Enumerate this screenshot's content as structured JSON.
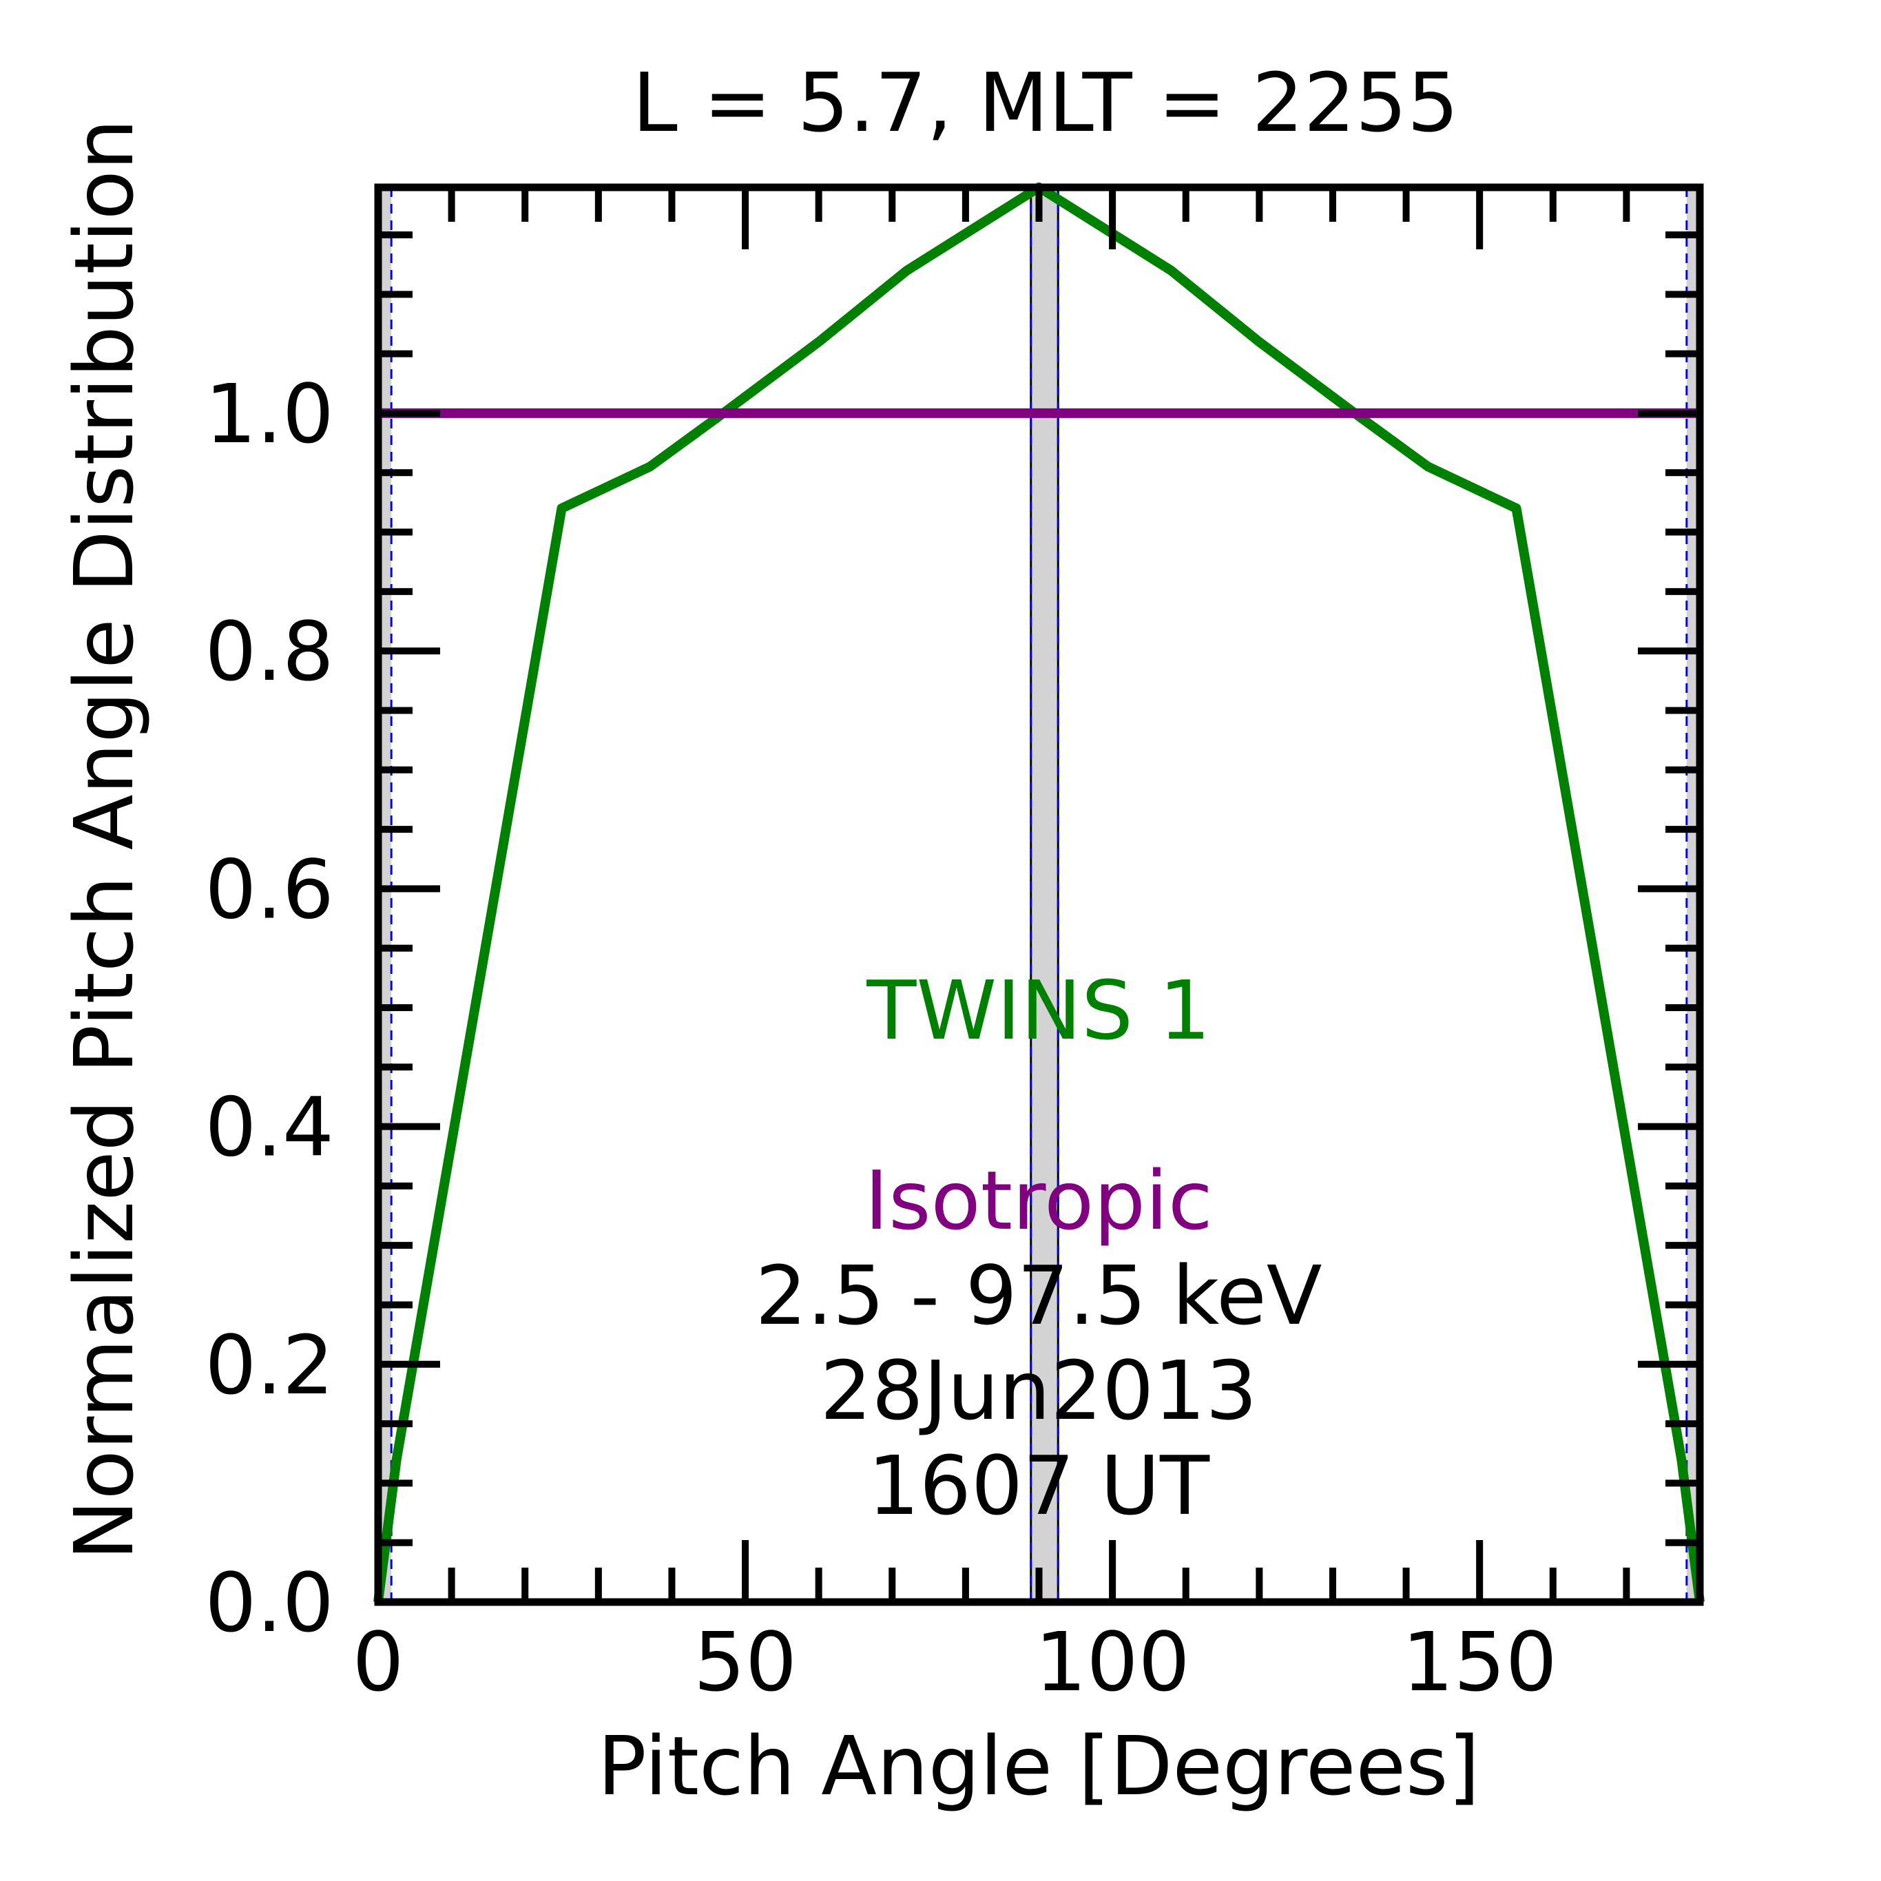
{
  "chart_data": {
    "type": "line",
    "title": "L =  5.7, MLT = 2255",
    "xlabel": "Pitch Angle [Degrees]",
    "ylabel": "Normalized Pitch Angle Distribution",
    "xlim": [
      0,
      180
    ],
    "ylim": [
      0,
      1.19
    ],
    "x_ticks": [
      0,
      50,
      100,
      150
    ],
    "x_tick_labels": [
      "0",
      "50",
      "100",
      "150"
    ],
    "y_ticks": [
      0.0,
      0.2,
      0.4,
      0.6,
      0.8,
      1.0
    ],
    "y_tick_labels": [
      "0.0",
      "0.2",
      "0.4",
      "0.6",
      "0.8",
      "1.0"
    ],
    "grid": false,
    "series": [
      {
        "name": "TWINS 1",
        "color": "#008000",
        "x": [
          0,
          2.5,
          25,
          37,
          47,
          60,
          72,
          90,
          108,
          120,
          133,
          143,
          155,
          177.5,
          180
        ],
        "y": [
          0.0,
          0.12,
          0.92,
          0.955,
          1.0,
          1.06,
          1.12,
          1.19,
          1.12,
          1.06,
          1.0,
          0.955,
          0.92,
          0.12,
          0.0
        ]
      },
      {
        "name": "Isotropic",
        "color": "#800080",
        "x": [
          0,
          180
        ],
        "y": [
          1.0,
          1.0
        ]
      }
    ],
    "shaded_bands": [
      {
        "x0": 0,
        "x1": 1.8,
        "color": "#d3d3d3"
      },
      {
        "x0": 88.9,
        "x1": 92.6,
        "color": "#d3d3d3"
      },
      {
        "x0": 178.2,
        "x1": 180,
        "color": "#d3d3d3"
      }
    ],
    "annotations": [
      {
        "text": "TWINS 1",
        "color": "#008000"
      },
      {
        "text": "Isotropic",
        "color": "#800080"
      },
      {
        "text": "2.5 - 97.5 keV",
        "color": "#000000"
      },
      {
        "text": "28Jun2013",
        "color": "#000000"
      },
      {
        "text": "1607 UT",
        "color": "#000000"
      }
    ]
  }
}
